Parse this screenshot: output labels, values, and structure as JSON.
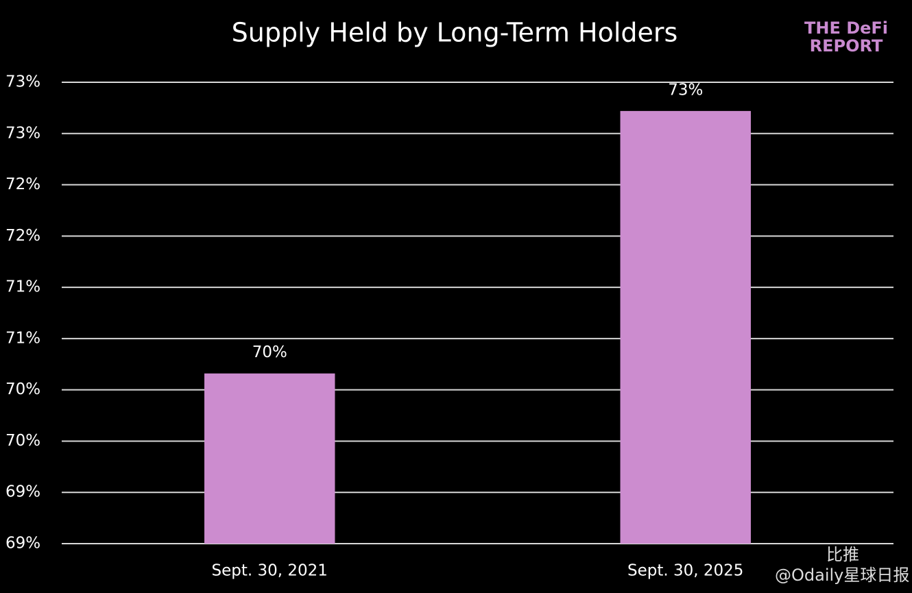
{
  "chart_data": {
    "type": "bar",
    "title": "Supply Held by Long-Term Holders",
    "categories": [
      "Sept. 30, 2021",
      "Sept. 30, 2025"
    ],
    "values": [
      70.16,
      72.72
    ],
    "value_labels": [
      "70%",
      "73%"
    ],
    "color": "#cc8ccf",
    "ylim": [
      68.5,
      73
    ],
    "yticks": [
      {
        "value": 68.5,
        "label": "69%"
      },
      {
        "value": 69,
        "label": "69%"
      },
      {
        "value": 69.5,
        "label": "70%"
      },
      {
        "value": 70,
        "label": "70%"
      },
      {
        "value": 70.5,
        "label": "71%"
      },
      {
        "value": 71,
        "label": "71%"
      },
      {
        "value": 71.5,
        "label": "72%"
      },
      {
        "value": 72,
        "label": "72%"
      },
      {
        "value": 72.5,
        "label": "73%"
      },
      {
        "value": 73,
        "label": "73%"
      }
    ],
    "grid": true
  },
  "logo": {
    "line1": "THE DeFi",
    "line2": "REPORT"
  },
  "watermarks": [
    "比推",
    "@Odaily星球日报"
  ]
}
